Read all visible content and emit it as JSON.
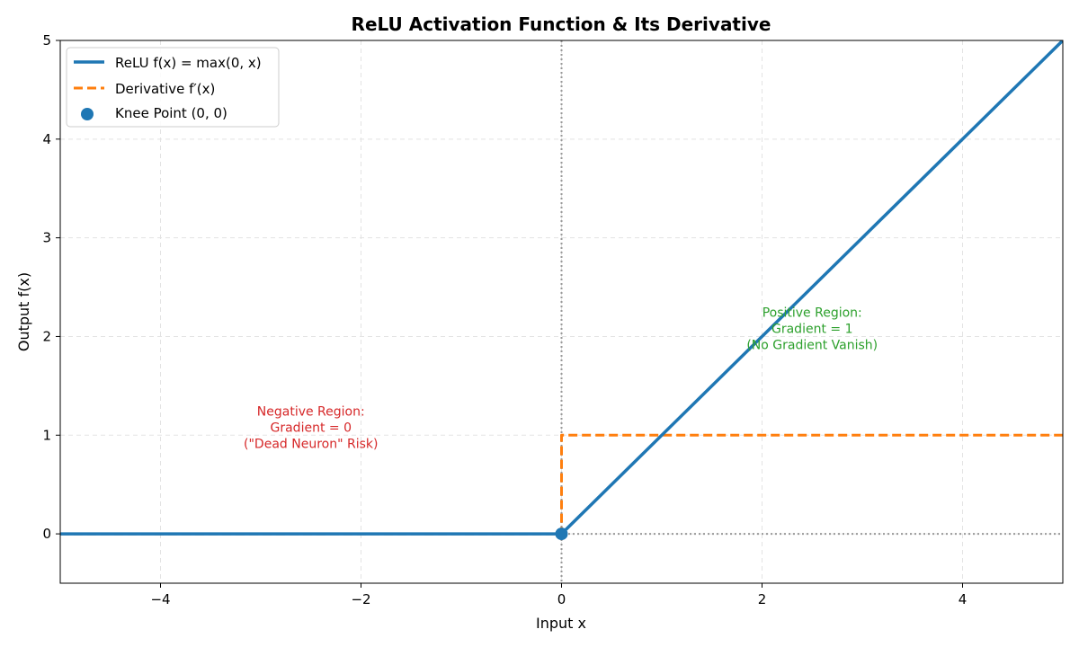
{
  "chart_data": {
    "type": "line",
    "title": "ReLU Activation Function & Its Derivative",
    "xlabel": "Input x",
    "ylabel": "Output f(x)",
    "xlim": [
      -5,
      5
    ],
    "ylim": [
      -0.5,
      5
    ],
    "xticks": [
      -4,
      -2,
      0,
      2,
      4
    ],
    "xtick_labels": [
      "−4",
      "−2",
      "0",
      "2",
      "4"
    ],
    "yticks": [
      0,
      1,
      2,
      3,
      4,
      5
    ],
    "ytick_labels": [
      "0",
      "1",
      "2",
      "3",
      "4",
      "5"
    ],
    "grid": true,
    "legend_position": "top-left",
    "series": [
      {
        "name": "ReLU f(x) = max(0, x)",
        "style": "solid",
        "color": "#1f77b4",
        "x": [
          -5,
          0,
          5
        ],
        "y": [
          0,
          0,
          5
        ]
      },
      {
        "name": "Derivative f′(x)",
        "style": "dashed",
        "color": "#ff7f0e",
        "x": [
          -5,
          0,
          0,
          5
        ],
        "y": [
          0,
          0,
          1,
          1
        ]
      }
    ],
    "points": [
      {
        "name": "Knee Point (0, 0)",
        "x": 0,
        "y": 0,
        "color": "#1f77b4"
      }
    ],
    "reference_lines": [
      {
        "orientation": "vertical",
        "value": 0,
        "color": "#999999",
        "style": "dotted"
      },
      {
        "orientation": "horizontal",
        "value": 0,
        "color": "#999999",
        "style": "dotted"
      }
    ],
    "annotations": [
      {
        "lines": [
          "Negative Region:",
          "Gradient = 0",
          "(\"Dead Neuron\" Risk)"
        ],
        "x": -2.5,
        "y": 1.2,
        "color": "#d62728"
      },
      {
        "lines": [
          "Positive Region:",
          "Gradient = 1",
          "(No Gradient Vanish)"
        ],
        "x": 2.5,
        "y": 2.2,
        "color": "#2ca02c"
      }
    ]
  }
}
